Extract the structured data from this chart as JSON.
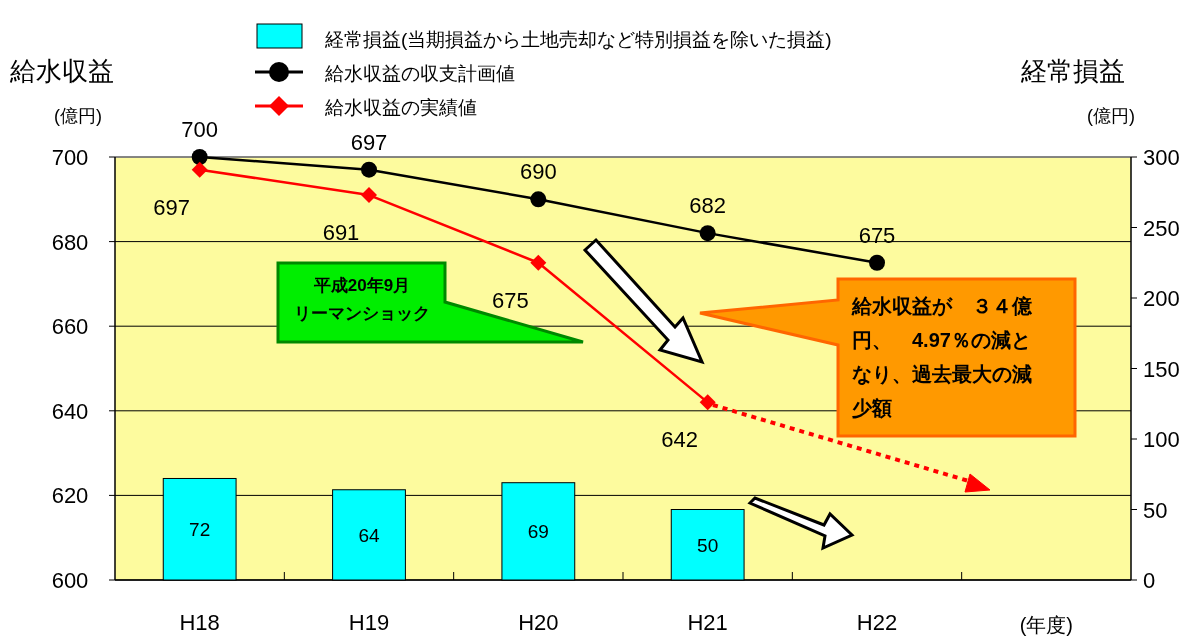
{
  "chart_data": {
    "type": "line",
    "ylabel": "給水収益",
    "y2label": "経常損益",
    "xlabel": "(年度)",
    "categories": [
      "H18",
      "H19",
      "H20",
      "H21",
      "H22"
    ],
    "series": [
      {
        "name": "経常損益(当期損益から土地売却など特別損益を除いた損益)",
        "type": "bar",
        "axis": "y2",
        "color": "#00ffff",
        "values": [
          72,
          64,
          69,
          50,
          null
        ]
      },
      {
        "name": "給水収益の収支計画値",
        "color": "#000000",
        "marker": "circle",
        "values": [
          700,
          697,
          690,
          682,
          675
        ]
      },
      {
        "name": "給水収益の実績値",
        "color": "#ff0000",
        "marker": "diamond",
        "values": [
          697,
          691,
          675,
          642,
          null
        ]
      }
    ],
    "ylim": [
      600,
      700
    ],
    "yticks": [
      600,
      620,
      640,
      660,
      680,
      700
    ],
    "y2lim": [
      0,
      300
    ],
    "y2ticks": [
      0,
      50,
      100,
      150,
      200,
      250,
      300
    ],
    "grid": "y",
    "legend": "top",
    "data_labels": true,
    "annotations": [
      "(億円)",
      "(億円)",
      "平成20年9月",
      "リーマンショック",
      "給水収益が　３４億円、　4.97％の減となり、過去最大の減少額"
    ]
  }
}
